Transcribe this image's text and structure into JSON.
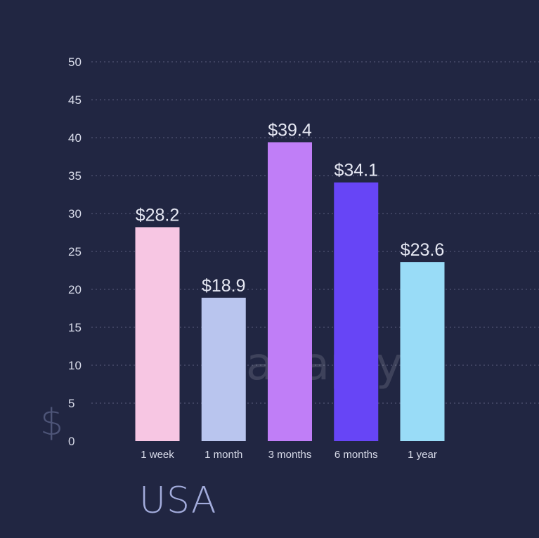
{
  "region_label": "USA",
  "currency_symbol": "$",
  "watermark": "adapty",
  "colors": {
    "background": "#212642",
    "grid": "#5a5f7d",
    "text": "#d9dcea",
    "region": "#a3acdc"
  },
  "chart_data": {
    "type": "bar",
    "title": "",
    "xlabel": "",
    "ylabel": "$",
    "ylim": [
      0,
      50
    ],
    "yticks": [
      0,
      5,
      10,
      15,
      20,
      25,
      30,
      35,
      40,
      45,
      50
    ],
    "grid": true,
    "categories": [
      "1 week",
      "1 month",
      "3 months",
      "6 months",
      "1 year"
    ],
    "values": [
      28.2,
      18.9,
      39.4,
      34.1,
      23.6
    ],
    "value_labels": [
      "$28.2",
      "$18.9",
      "$39.4",
      "$34.1",
      "$23.6"
    ],
    "bar_colors": [
      "#f7c6e3",
      "#b9c5ee",
      "#c07ef7",
      "#6745f6",
      "#99dcf7"
    ]
  }
}
